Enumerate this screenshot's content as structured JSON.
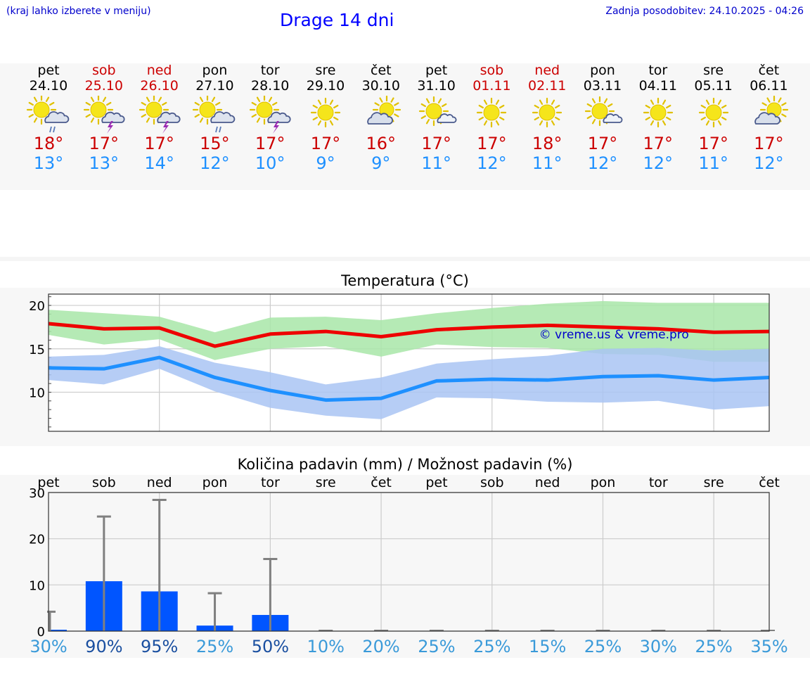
{
  "header": {
    "hint": "(kraj lahko izberete v meniju)",
    "title": "Drage 14 dni",
    "updated": "Zadnja posodobitev: 24.10.2025 - 04:26"
  },
  "colors": {
    "weekday": "#000000",
    "weekend": "#cc0000",
    "temp_max": "#cc0000",
    "temp_min": "#1e90ff",
    "max_line": "#ee0000",
    "min_line": "#1e90ff",
    "max_band": "#a8e6a8",
    "min_band": "#a9c4f3",
    "bar": "#0055ff",
    "whisker": "#808080"
  },
  "days": [
    {
      "name": "pet",
      "date": "24.10",
      "weekend": false,
      "icon": "sun-cloud-rain-icon",
      "max": "18°",
      "min": "13°"
    },
    {
      "name": "sob",
      "date": "25.10",
      "weekend": true,
      "icon": "sun-cloud-thunder-icon",
      "max": "17°",
      "min": "13°"
    },
    {
      "name": "ned",
      "date": "26.10",
      "weekend": true,
      "icon": "sun-cloud-thunder-icon",
      "max": "17°",
      "min": "14°"
    },
    {
      "name": "pon",
      "date": "27.10",
      "weekend": false,
      "icon": "sun-cloud-rain-icon",
      "max": "15°",
      "min": "12°"
    },
    {
      "name": "tor",
      "date": "28.10",
      "weekend": false,
      "icon": "sun-cloud-thunder-icon",
      "max": "17°",
      "min": "10°"
    },
    {
      "name": "sre",
      "date": "29.10",
      "weekend": false,
      "icon": "sun-icon",
      "max": "17°",
      "min": "9°"
    },
    {
      "name": "čet",
      "date": "30.10",
      "weekend": false,
      "icon": "cloud-sun-icon",
      "max": "16°",
      "min": "9°"
    },
    {
      "name": "pet",
      "date": "31.10",
      "weekend": false,
      "icon": "sun-small-cloud-icon",
      "max": "17°",
      "min": "11°"
    },
    {
      "name": "sob",
      "date": "01.11",
      "weekend": true,
      "icon": "sun-icon",
      "max": "17°",
      "min": "12°"
    },
    {
      "name": "ned",
      "date": "02.11",
      "weekend": true,
      "icon": "sun-icon",
      "max": "18°",
      "min": "11°"
    },
    {
      "name": "pon",
      "date": "03.11",
      "weekend": false,
      "icon": "sun-small-cloud-icon",
      "max": "17°",
      "min": "12°"
    },
    {
      "name": "tor",
      "date": "04.11",
      "weekend": false,
      "icon": "sun-icon",
      "max": "17°",
      "min": "12°"
    },
    {
      "name": "sre",
      "date": "05.11",
      "weekend": false,
      "icon": "sun-icon",
      "max": "17°",
      "min": "11°"
    },
    {
      "name": "čet",
      "date": "06.11",
      "weekend": false,
      "icon": "cloud-sun-icon",
      "max": "17°",
      "min": "12°"
    }
  ],
  "chart_data": [
    {
      "type": "line",
      "title": "Temperatura (°C)",
      "xlabel": "",
      "ylabel": "",
      "ylim": [
        5.5,
        21.3
      ],
      "yticks": [
        10,
        15,
        20
      ],
      "grid": true,
      "watermark": "© vreme.us & vreme.pro",
      "x": [
        0,
        1,
        2,
        3,
        4,
        5,
        6,
        7,
        8,
        9,
        10,
        11,
        12,
        13
      ],
      "series": [
        {
          "role": "max",
          "values": [
            17.9,
            17.3,
            17.4,
            15.3,
            16.7,
            17.0,
            16.4,
            17.2,
            17.5,
            17.7,
            17.5,
            17.3,
            16.9,
            17.0
          ],
          "low": [
            16.6,
            15.5,
            16.1,
            13.7,
            15.0,
            15.3,
            14.1,
            15.5,
            15.2,
            15.1,
            14.4,
            14.3,
            13.5,
            13.5
          ],
          "high": [
            19.5,
            19.1,
            18.7,
            16.9,
            18.6,
            18.7,
            18.3,
            19.1,
            19.7,
            20.2,
            20.5,
            20.3,
            20.3,
            20.3
          ]
        },
        {
          "role": "min",
          "values": [
            12.8,
            12.7,
            14.0,
            11.7,
            10.2,
            9.1,
            9.3,
            11.3,
            11.5,
            11.4,
            11.8,
            11.9,
            11.4,
            11.7
          ],
          "low": [
            11.4,
            10.9,
            12.7,
            10.1,
            8.2,
            7.3,
            6.9,
            9.4,
            9.3,
            8.9,
            8.8,
            9.0,
            8.0,
            8.4
          ],
          "high": [
            14.1,
            14.3,
            15.3,
            13.4,
            12.3,
            10.9,
            11.7,
            13.3,
            13.8,
            14.2,
            15.0,
            15.1,
            14.8,
            15.0
          ]
        }
      ]
    },
    {
      "type": "bar",
      "title": "Količina padavin (mm) / Možnost padavin (%)",
      "ylim": [
        0,
        30
      ],
      "yticks": [
        0,
        10,
        20,
        30
      ],
      "grid": true,
      "categories": [
        "pet",
        "sob",
        "ned",
        "pon",
        "tor",
        "sre",
        "čet",
        "pet",
        "sob",
        "ned",
        "pon",
        "tor",
        "sre",
        "čet"
      ],
      "values": [
        0.3,
        10.8,
        8.6,
        1.2,
        3.5,
        0,
        0,
        0,
        0,
        0,
        0,
        0,
        0,
        0
      ],
      "error_high": [
        4.2,
        24.8,
        28.4,
        8.2,
        15.6,
        0,
        0,
        0,
        0,
        0,
        0,
        0,
        0,
        0
      ],
      "probability": [
        "30%",
        "90%",
        "95%",
        "25%",
        "50%",
        "10%",
        "20%",
        "25%",
        "25%",
        "15%",
        "25%",
        "30%",
        "25%",
        "35%"
      ],
      "probability_values": [
        30,
        90,
        95,
        25,
        50,
        10,
        20,
        25,
        25,
        15,
        25,
        30,
        25,
        35
      ]
    }
  ]
}
